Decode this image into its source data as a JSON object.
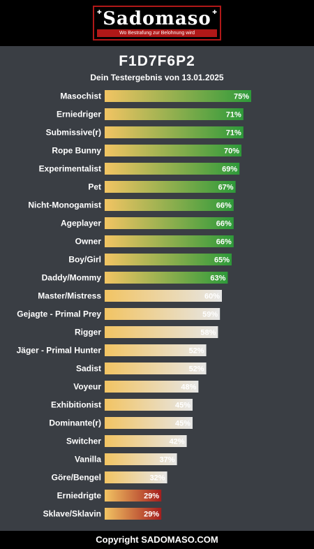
{
  "header": {
    "logo_text": "Sadomaso",
    "logo_tagline": "Wo Bestrafung zur Belohnung wird"
  },
  "title": "F1D7F6P2",
  "subtitle": "Dein Testergebnis von 13.01.2025",
  "footer": "Copyright SADOMASO.COM",
  "colors": {
    "start": "#f0c060",
    "green": "#2e9a3a",
    "grey": "#e4e4e4",
    "red": "#a82020",
    "background": "#3a3e44"
  },
  "chart_data": {
    "type": "bar",
    "orientation": "horizontal",
    "xlim": [
      0,
      100
    ],
    "categories": [
      "Masochist",
      "Erniedriger",
      "Submissive(r)",
      "Rope Bunny",
      "Experimentalist",
      "Pet",
      "Nicht-Monogamist",
      "Ageplayer",
      "Owner",
      "Boy/Girl",
      "Daddy/Mommy",
      "Master/Mistress",
      "Gejagte - Primal Prey",
      "Rigger",
      "Jäger - Primal Hunter",
      "Sadist",
      "Voyeur",
      "Exhibitionist",
      "Dominante(r)",
      "Switcher",
      "Vanilla",
      "Göre/Bengel",
      "Erniedrigte",
      "Sklave/Sklavin"
    ],
    "values": [
      75,
      71,
      71,
      70,
      69,
      67,
      66,
      66,
      66,
      65,
      63,
      60,
      59,
      58,
      52,
      52,
      48,
      45,
      45,
      42,
      37,
      32,
      29,
      29
    ],
    "labels": [
      "75%",
      "71%",
      "71%",
      "70%",
      "69%",
      "67%",
      "66%",
      "66%",
      "66%",
      "65%",
      "63%",
      "60%",
      "59%",
      "58%",
      "52%",
      "52%",
      "48%",
      "45%",
      "45%",
      "42%",
      "37%",
      "32%",
      "29%",
      "29%"
    ],
    "bar_style": [
      "green",
      "green",
      "green",
      "green",
      "green",
      "green",
      "green",
      "green",
      "green",
      "green",
      "green",
      "grey",
      "grey",
      "grey",
      "grey",
      "grey",
      "grey",
      "grey",
      "grey",
      "grey",
      "grey",
      "grey",
      "red",
      "red"
    ]
  }
}
